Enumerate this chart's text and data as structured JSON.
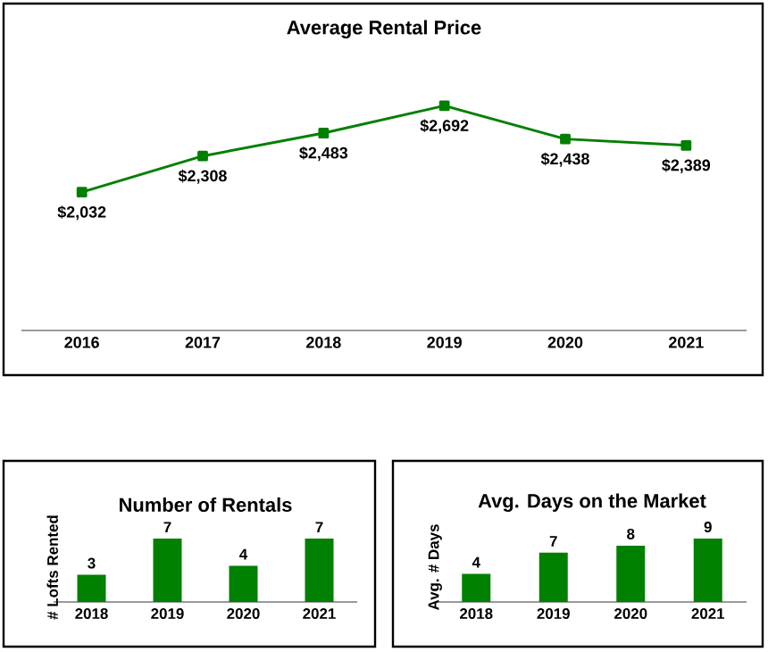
{
  "chart_data": [
    {
      "type": "line",
      "title": "Average Rental Price",
      "categories": [
        "2016",
        "2017",
        "2018",
        "2019",
        "2020",
        "2021"
      ],
      "values": [
        2032,
        2308,
        2483,
        2692,
        2438,
        2389
      ],
      "value_labels": [
        "$2,032",
        "$2,308",
        "$2,483",
        "$2,692",
        "$2,438",
        "$2,389"
      ],
      "color": "#008000",
      "marker": "square",
      "line_style": "solid"
    },
    {
      "type": "bar",
      "title": "Number of Rentals",
      "ylabel": "# Lofts Rented",
      "categories": [
        "2018",
        "2019",
        "2020",
        "2021"
      ],
      "values": [
        3,
        7,
        4,
        7
      ],
      "color": "#008000",
      "data_labels": true
    },
    {
      "type": "bar",
      "title": "Avg. Days on the Market",
      "ylabel": "Avg. # Days",
      "categories": [
        "2018",
        "2019",
        "2020",
        "2021"
      ],
      "values": [
        4,
        7,
        8,
        9
      ],
      "color": "#008000",
      "data_labels": true
    }
  ]
}
